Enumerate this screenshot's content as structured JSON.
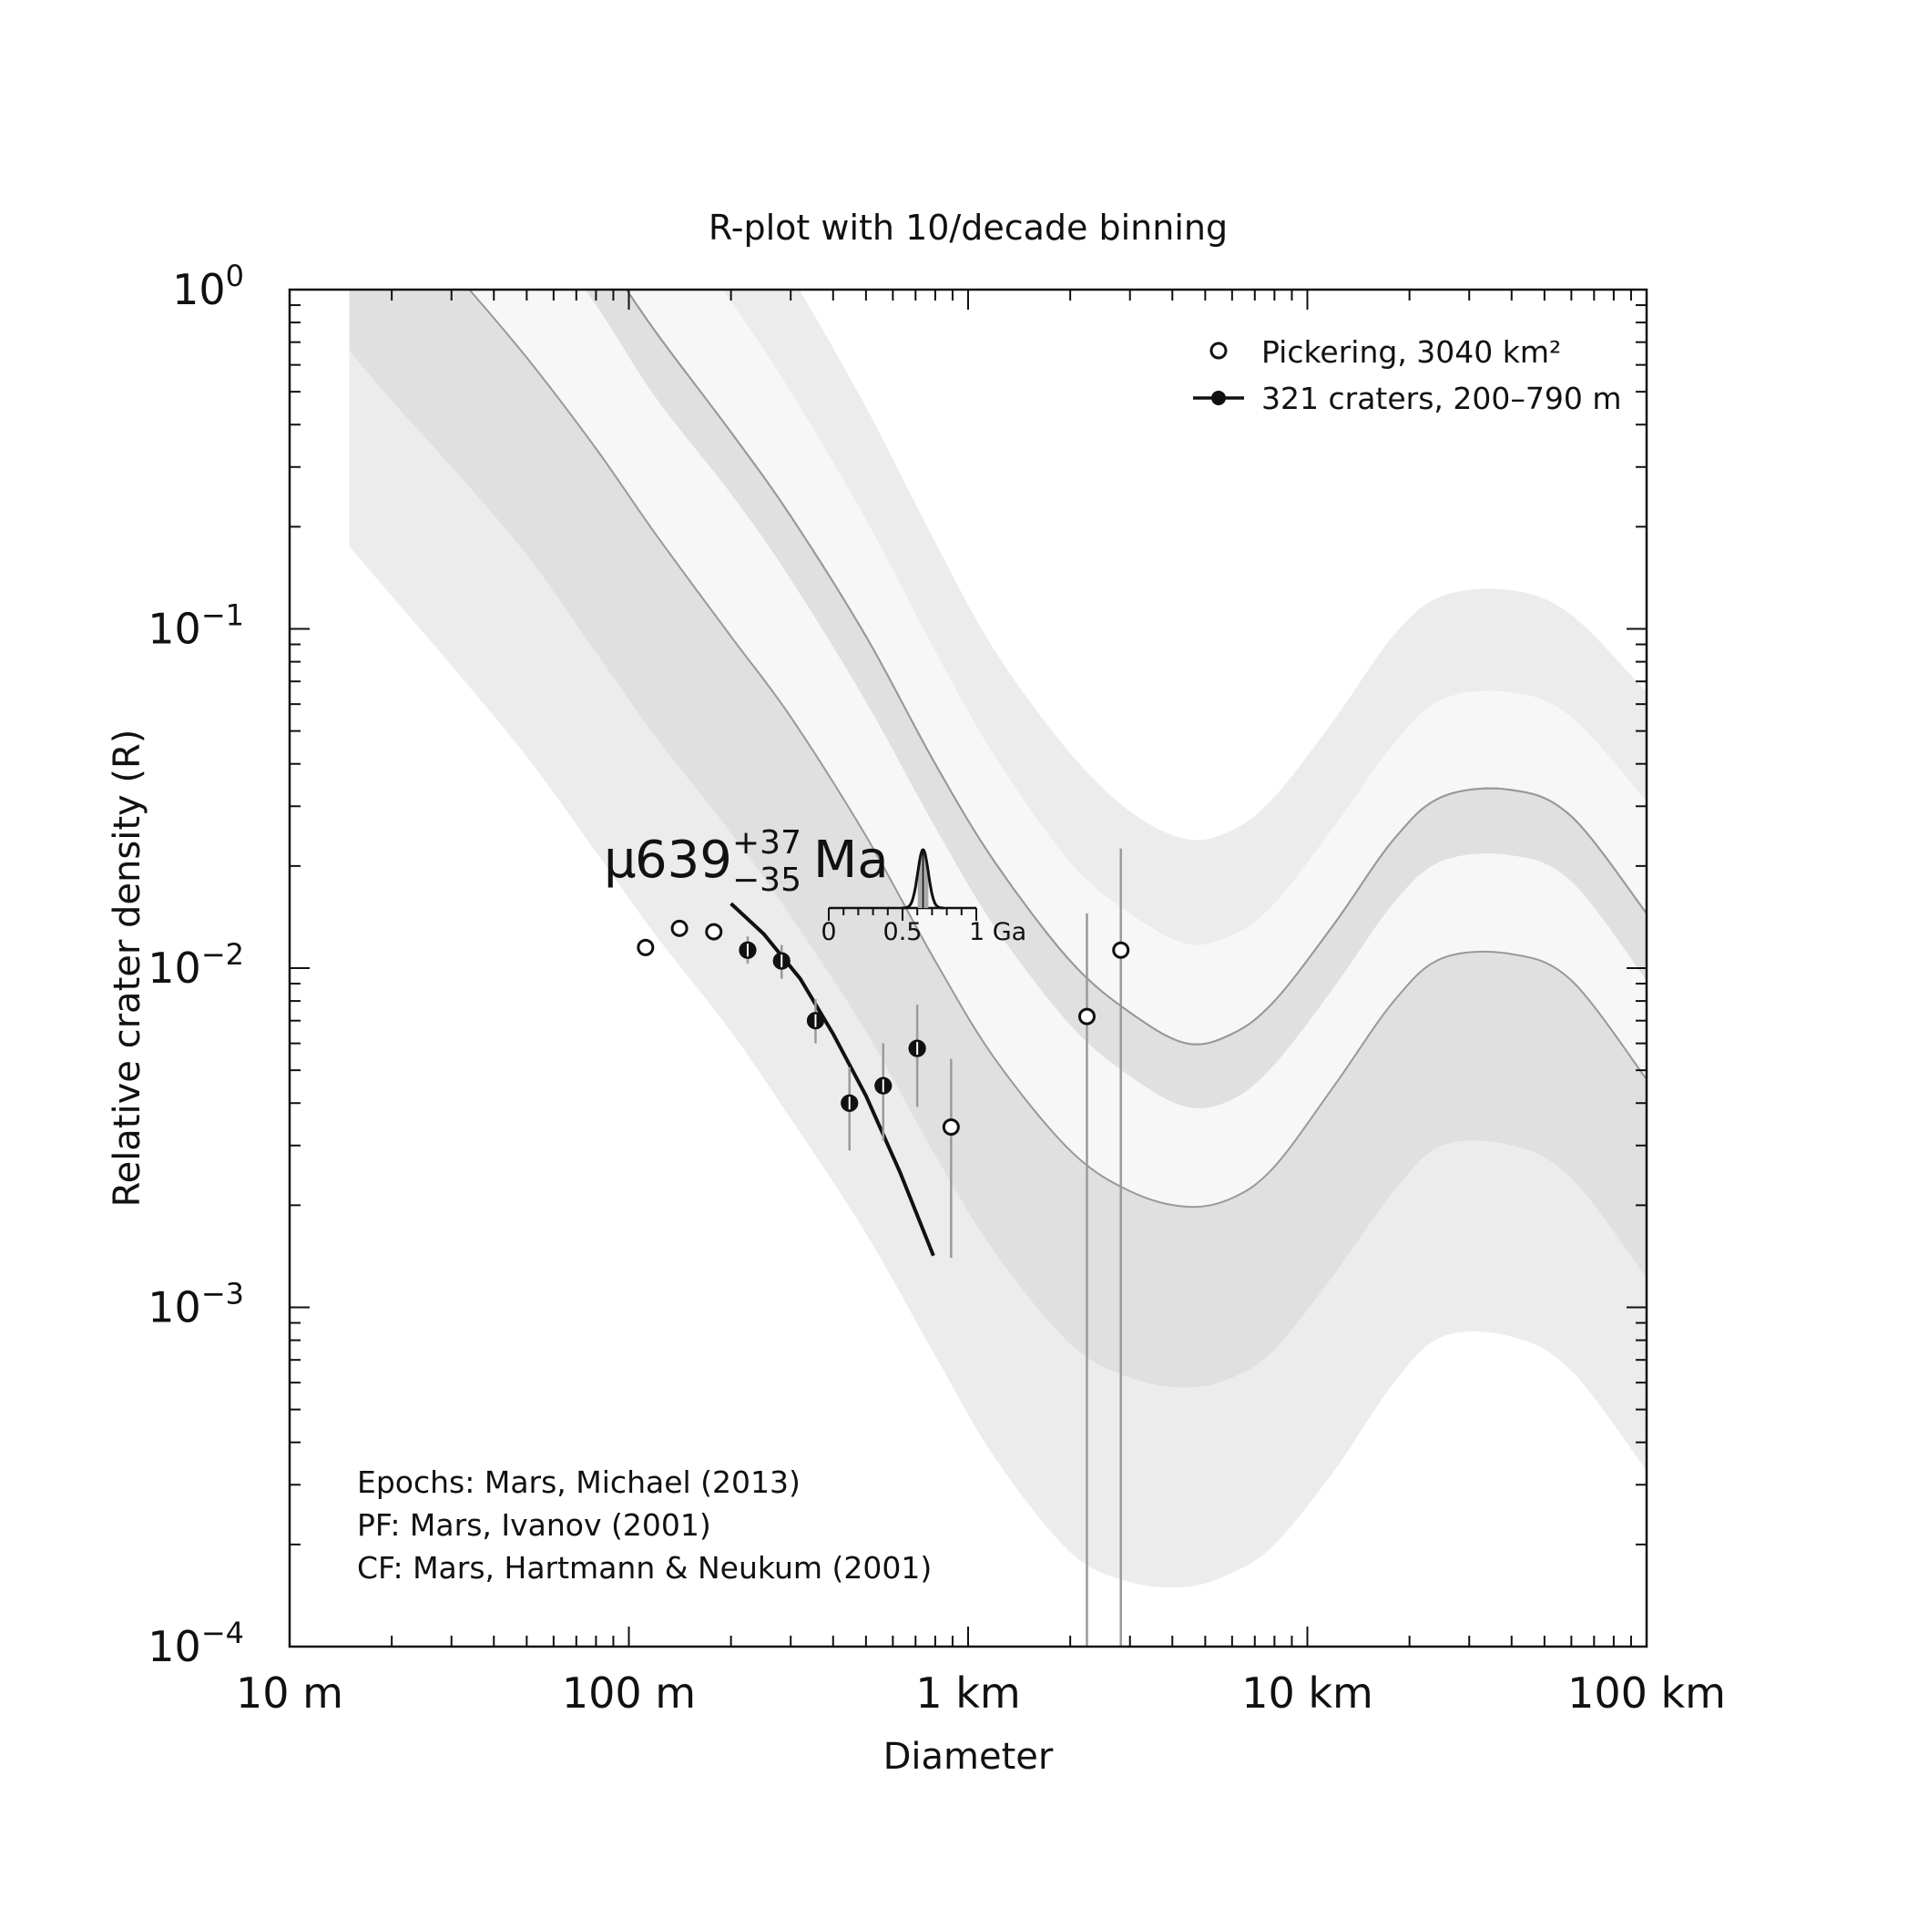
{
  "chart_data": {
    "type": "scatter",
    "title": "R-plot with 10/decade binning",
    "xlabel": "Diameter",
    "ylabel": "Relative crater density (R)",
    "xscale": "log",
    "yscale": "log",
    "x_unit": "km",
    "xlim": [
      0.01,
      100
    ],
    "ylim": [
      0.0001,
      1
    ],
    "x_ticks": [
      {
        "value": 0.01,
        "label": "10 m"
      },
      {
        "value": 0.1,
        "label": "100 m"
      },
      {
        "value": 1,
        "label": "1 km"
      },
      {
        "value": 10,
        "label": "10 km"
      },
      {
        "value": 100,
        "label": "100 km"
      }
    ],
    "y_ticks": [
      {
        "value": 1,
        "base": "10",
        "exp": "0"
      },
      {
        "value": 0.1,
        "base": "10",
        "exp": "−1"
      },
      {
        "value": 0.01,
        "base": "10",
        "exp": "−2"
      },
      {
        "value": 0.001,
        "base": "10",
        "exp": "−3"
      },
      {
        "value": 0.0001,
        "base": "10",
        "exp": "−4"
      }
    ],
    "epoch_bands": {
      "x": [
        0.015,
        0.02,
        0.03,
        0.05,
        0.08,
        0.12,
        0.2,
        0.3,
        0.5,
        0.8,
        1.2,
        2,
        3,
        4.4,
        6,
        8,
        12,
        18,
        25,
        40,
        60,
        100
      ],
      "boundaries": [
        [
          0.175,
          0.125,
          0.078,
          0.042,
          0.022,
          0.0125,
          0.0065,
          0.0036,
          0.00165,
          0.00072,
          0.00036,
          0.00019,
          0.000155,
          0.00015,
          0.000165,
          0.0002,
          0.00033,
          0.0006,
          0.00082,
          0.00082,
          0.00065,
          0.00033
        ],
        [
          0.66,
          0.47,
          0.3,
          0.165,
          0.085,
          0.048,
          0.025,
          0.0142,
          0.0065,
          0.0028,
          0.00145,
          0.00078,
          0.00062,
          0.00058,
          0.00062,
          0.00075,
          0.00125,
          0.0022,
          0.003,
          0.003,
          0.0024,
          0.00122
        ],
        [
          2.5,
          1.8,
          1.15,
          0.63,
          0.34,
          0.19,
          0.095,
          0.055,
          0.0245,
          0.0105,
          0.0054,
          0.0029,
          0.0022,
          0.00198,
          0.0021,
          0.0026,
          0.0045,
          0.008,
          0.0107,
          0.011,
          0.0092,
          0.0047
        ],
        [
          6,
          4.5,
          3,
          1.7,
          0.9,
          0.48,
          0.25,
          0.14,
          0.061,
          0.026,
          0.0132,
          0.0068,
          0.0048,
          0.0039,
          0.0041,
          0.0052,
          0.0088,
          0.0156,
          0.0207,
          0.0215,
          0.018,
          0.0092
        ],
        [
          9,
          7,
          4.5,
          2.5,
          1.35,
          0.75,
          0.38,
          0.215,
          0.095,
          0.04,
          0.0205,
          0.0105,
          0.0074,
          0.006,
          0.0064,
          0.008,
          0.0135,
          0.024,
          0.032,
          0.0335,
          0.028,
          0.0145
        ],
        [
          20,
          15,
          10,
          6,
          3.3,
          1.8,
          0.92,
          0.5,
          0.21,
          0.086,
          0.042,
          0.0205,
          0.0145,
          0.0118,
          0.0125,
          0.0155,
          0.0262,
          0.046,
          0.062,
          0.065,
          0.055,
          0.031
        ],
        [
          50,
          40,
          25,
          14,
          7.5,
          4,
          2,
          1.1,
          0.45,
          0.18,
          0.086,
          0.043,
          0.029,
          0.024,
          0.0255,
          0.032,
          0.054,
          0.096,
          0.125,
          0.13,
          0.11,
          0.065
        ]
      ],
      "fills": [
        "#ececec",
        "#e0e0e0",
        "#f7f7f7",
        "#e0e0e0",
        "#f7f7f7",
        "#ececec"
      ],
      "boundary_lines": [
        2,
        4
      ],
      "line_color": "#999999"
    },
    "series": [
      {
        "name": "Pickering, 3040 km²",
        "marker": "open-circle",
        "points": [
          {
            "x": 0.112,
            "y": 0.0115
          },
          {
            "x": 0.141,
            "y": 0.0131
          },
          {
            "x": 0.178,
            "y": 0.0128
          },
          {
            "x": 0.224,
            "y": 0.0113,
            "err": [
              0.0103,
              0.0124
            ]
          },
          {
            "x": 0.282,
            "y": 0.0105,
            "err": [
              0.0093,
              0.0117
            ]
          },
          {
            "x": 0.355,
            "y": 0.007,
            "err": [
              0.006,
              0.0081
            ]
          },
          {
            "x": 0.447,
            "y": 0.004,
            "err": [
              0.0029,
              0.0051
            ]
          },
          {
            "x": 0.562,
            "y": 0.0045,
            "err": [
              0.0031,
              0.006
            ]
          },
          {
            "x": 0.708,
            "y": 0.0058,
            "err": [
              0.0039,
              0.0078
            ]
          },
          {
            "x": 0.891,
            "y": 0.0034,
            "err": [
              0.0014,
              0.0054
            ]
          },
          {
            "x": 2.24,
            "y": 0.0072,
            "err": [
              9e-05,
              0.0145
            ]
          },
          {
            "x": 2.82,
            "y": 0.0113,
            "err": [
              9e-05,
              0.0225
            ]
          }
        ]
      },
      {
        "name": "321 craters, 200–790 m",
        "marker": "filled-circle",
        "points": [
          {
            "x": 0.224,
            "y": 0.0113
          },
          {
            "x": 0.282,
            "y": 0.0105
          },
          {
            "x": 0.355,
            "y": 0.007
          },
          {
            "x": 0.447,
            "y": 0.004
          },
          {
            "x": 0.562,
            "y": 0.0045
          },
          {
            "x": 0.708,
            "y": 0.0058
          }
        ],
        "fit_line": {
          "x": [
            0.2,
            0.25,
            0.32,
            0.4,
            0.5,
            0.63,
            0.79
          ],
          "y": [
            0.0155,
            0.0126,
            0.0093,
            0.0064,
            0.0042,
            0.0025,
            0.00142
          ]
        }
      }
    ],
    "age_label": {
      "mu": "μ",
      "value": "639",
      "sup": "+37",
      "sub": "−35",
      "unit": "Ma"
    },
    "age_inset": {
      "ticks": [
        "0",
        "0.5",
        "1 Ga"
      ],
      "range": [
        0,
        1
      ],
      "peak": 0.639,
      "sigma": 0.036
    },
    "legend_position": "top-right",
    "notes": [
      "Epochs: Mars, Michael (2013)",
      "PF: Mars, Ivanov (2001)",
      "CF: Mars, Hartmann & Neukum (2001)"
    ]
  }
}
